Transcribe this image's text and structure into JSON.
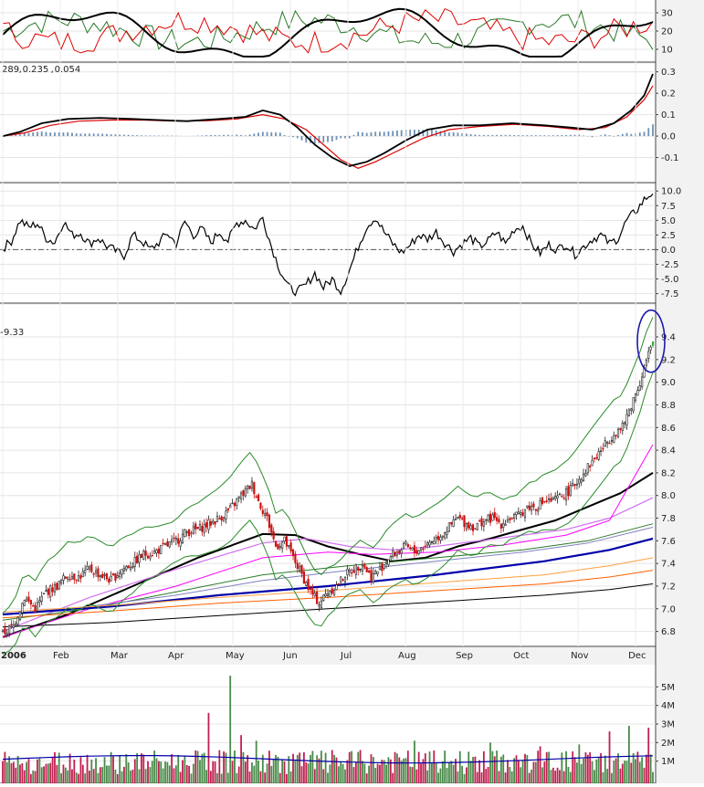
{
  "chart_data": [
    {
      "type": "line",
      "panel": "ADX / directional indicator",
      "ylim": [
        5,
        35
      ],
      "y_ticks": [
        "30",
        "20",
        "10"
      ],
      "series_colors": {
        "adx": "#000000",
        "plus_di": "#2a7a2a",
        "minus_di": "#dd0000"
      }
    },
    {
      "type": "line",
      "panel": "MACD",
      "legend_values": [
        "289",
        "0.235",
        "0.054"
      ],
      "legend_colors": [
        "#000000",
        "#dd0000",
        "#2a7a2a"
      ],
      "ylim": [
        -0.2,
        0.32
      ],
      "y_ticks": [
        "0.3",
        "0.2",
        "0.1",
        "0.0",
        "-0.1"
      ],
      "histogram_color": "#6e90b4",
      "macd_points": [
        [
          0,
          0.0
        ],
        [
          8,
          0.02
        ],
        [
          18,
          0.06
        ],
        [
          30,
          0.08
        ],
        [
          45,
          0.085
        ],
        [
          60,
          0.08
        ],
        [
          72,
          0.075
        ],
        [
          85,
          0.07
        ],
        [
          100,
          0.08
        ],
        [
          112,
          0.09
        ],
        [
          120,
          0.12
        ],
        [
          128,
          0.1
        ],
        [
          136,
          0.04
        ],
        [
          144,
          -0.04
        ],
        [
          152,
          -0.1
        ],
        [
          160,
          -0.14
        ],
        [
          168,
          -0.12
        ],
        [
          176,
          -0.08
        ],
        [
          186,
          -0.02
        ],
        [
          196,
          0.03
        ],
        [
          208,
          0.05
        ],
        [
          220,
          0.05
        ],
        [
          235,
          0.06
        ],
        [
          250,
          0.05
        ],
        [
          262,
          0.04
        ],
        [
          272,
          0.03
        ],
        [
          282,
          0.06
        ],
        [
          290,
          0.12
        ],
        [
          296,
          0.19
        ],
        [
          300,
          0.29
        ]
      ],
      "signal_points": [
        [
          0,
          0.0
        ],
        [
          10,
          0.015
        ],
        [
          22,
          0.05
        ],
        [
          35,
          0.07
        ],
        [
          50,
          0.075
        ],
        [
          65,
          0.075
        ],
        [
          80,
          0.07
        ],
        [
          95,
          0.072
        ],
        [
          108,
          0.08
        ],
        [
          120,
          0.1
        ],
        [
          130,
          0.08
        ],
        [
          140,
          0.03
        ],
        [
          148,
          -0.04
        ],
        [
          156,
          -0.11
        ],
        [
          164,
          -0.15
        ],
        [
          172,
          -0.12
        ],
        [
          182,
          -0.07
        ],
        [
          194,
          -0.01
        ],
        [
          206,
          0.03
        ],
        [
          220,
          0.045
        ],
        [
          236,
          0.055
        ],
        [
          252,
          0.045
        ],
        [
          266,
          0.03
        ],
        [
          278,
          0.04
        ],
        [
          288,
          0.09
        ],
        [
          296,
          0.17
        ],
        [
          300,
          0.235
        ]
      ]
    },
    {
      "type": "line",
      "panel": "oscillator",
      "ylim": [
        -8.5,
        10.5
      ],
      "y_ticks": [
        "10.0",
        "7.5",
        "5.0",
        "2.5",
        "0.0",
        "-2.5",
        "-5.0",
        "-7.5"
      ],
      "points": [
        [
          0,
          0.2
        ],
        [
          4,
          1.5
        ],
        [
          8,
          5.0
        ],
        [
          12,
          3.8
        ],
        [
          16,
          4.5
        ],
        [
          20,
          2.0
        ],
        [
          24,
          1.2
        ],
        [
          28,
          4.8
        ],
        [
          32,
          2.5
        ],
        [
          36,
          2.8
        ],
        [
          40,
          1.0
        ],
        [
          44,
          2.0
        ],
        [
          48,
          0.6
        ],
        [
          52,
          -0.2
        ],
        [
          56,
          -1.0
        ],
        [
          60,
          2.5
        ],
        [
          64,
          1.5
        ],
        [
          68,
          0.0
        ],
        [
          72,
          1.2
        ],
        [
          76,
          2.8
        ],
        [
          80,
          1.0
        ],
        [
          84,
          4.8
        ],
        [
          88,
          2.5
        ],
        [
          92,
          3.5
        ],
        [
          96,
          1.2
        ],
        [
          100,
          3.0
        ],
        [
          104,
          1.5
        ],
        [
          108,
          4.5
        ],
        [
          112,
          5.0
        ],
        [
          116,
          3.5
        ],
        [
          120,
          5.5
        ],
        [
          124,
          0.5
        ],
        [
          128,
          -3.5
        ],
        [
          132,
          -6.5
        ],
        [
          136,
          -7.2
        ],
        [
          140,
          -6.0
        ],
        [
          144,
          -4.0
        ],
        [
          148,
          -6.5
        ],
        [
          152,
          -5.0
        ],
        [
          156,
          -7.0
        ],
        [
          160,
          -3.5
        ],
        [
          164,
          0.5
        ],
        [
          168,
          4.0
        ],
        [
          172,
          5.5
        ],
        [
          176,
          3.0
        ],
        [
          180,
          1.0
        ],
        [
          184,
          -0.5
        ],
        [
          188,
          0.8
        ],
        [
          192,
          2.5
        ],
        [
          196,
          1.8
        ],
        [
          200,
          3.0
        ],
        [
          204,
          1.2
        ],
        [
          208,
          -0.3
        ],
        [
          212,
          1.0
        ],
        [
          216,
          2.0
        ],
        [
          220,
          0.5
        ],
        [
          224,
          1.5
        ],
        [
          228,
          3.0
        ],
        [
          232,
          1.0
        ],
        [
          236,
          3.5
        ],
        [
          240,
          4.0
        ],
        [
          244,
          1.0
        ],
        [
          248,
          -0.6
        ],
        [
          252,
          0.8
        ],
        [
          256,
          0.0
        ],
        [
          260,
          1.0
        ],
        [
          264,
          -0.8
        ],
        [
          268,
          0.5
        ],
        [
          272,
          1.8
        ],
        [
          276,
          2.5
        ],
        [
          280,
          1.0
        ],
        [
          284,
          2.0
        ],
        [
          288,
          5.0
        ],
        [
          292,
          6.5
        ],
        [
          296,
          8.5
        ],
        [
          300,
          9.8
        ]
      ],
      "zero_line": "dash-dot"
    },
    {
      "type": "candlestick",
      "panel": "price",
      "legend_value": "9.33",
      "legend_color": "#2a7a2a",
      "ylim": [
        6.7,
        9.65
      ],
      "y_ticks": [
        "9.4",
        "9.2",
        "9.0",
        "8.8",
        "8.6",
        "8.4",
        "8.2",
        "8.0",
        "7.8",
        "7.6",
        "7.4",
        "7.2",
        "7.0",
        "6.8"
      ],
      "x_labels": [
        "2006",
        "Feb",
        "Mar",
        "Apr",
        "May",
        "Jun",
        "Jul",
        "Aug",
        "Sep",
        "Oct",
        "Nov",
        "Dec"
      ],
      "close_path": [
        [
          0,
          6.78
        ],
        [
          5,
          6.85
        ],
        [
          10,
          7.1
        ],
        [
          15,
          7.0
        ],
        [
          20,
          7.15
        ],
        [
          25,
          7.2
        ],
        [
          30,
          7.3
        ],
        [
          35,
          7.28
        ],
        [
          40,
          7.35
        ],
        [
          45,
          7.3
        ],
        [
          50,
          7.25
        ],
        [
          55,
          7.35
        ],
        [
          60,
          7.4
        ],
        [
          65,
          7.48
        ],
        [
          70,
          7.5
        ],
        [
          75,
          7.55
        ],
        [
          80,
          7.6
        ],
        [
          85,
          7.68
        ],
        [
          90,
          7.7
        ],
        [
          95,
          7.75
        ],
        [
          100,
          7.8
        ],
        [
          105,
          7.88
        ],
        [
          110,
          8.0
        ],
        [
          115,
          8.1
        ],
        [
          118,
          7.95
        ],
        [
          122,
          7.8
        ],
        [
          126,
          7.55
        ],
        [
          130,
          7.6
        ],
        [
          134,
          7.45
        ],
        [
          138,
          7.3
        ],
        [
          142,
          7.15
        ],
        [
          146,
          7.05
        ],
        [
          150,
          7.15
        ],
        [
          154,
          7.2
        ],
        [
          158,
          7.3
        ],
        [
          162,
          7.35
        ],
        [
          166,
          7.4
        ],
        [
          170,
          7.28
        ],
        [
          174,
          7.35
        ],
        [
          178,
          7.45
        ],
        [
          182,
          7.5
        ],
        [
          186,
          7.55
        ],
        [
          190,
          7.5
        ],
        [
          194,
          7.55
        ],
        [
          198,
          7.6
        ],
        [
          202,
          7.65
        ],
        [
          206,
          7.72
        ],
        [
          210,
          7.8
        ],
        [
          214,
          7.75
        ],
        [
          218,
          7.72
        ],
        [
          222,
          7.78
        ],
        [
          226,
          7.8
        ],
        [
          230,
          7.75
        ],
        [
          234,
          7.8
        ],
        [
          238,
          7.82
        ],
        [
          242,
          7.9
        ],
        [
          246,
          7.9
        ],
        [
          250,
          7.95
        ],
        [
          254,
          7.95
        ],
        [
          258,
          8.0
        ],
        [
          262,
          8.05
        ],
        [
          266,
          8.15
        ],
        [
          270,
          8.25
        ],
        [
          274,
          8.35
        ],
        [
          278,
          8.45
        ],
        [
          282,
          8.55
        ],
        [
          286,
          8.6
        ],
        [
          290,
          8.8
        ],
        [
          294,
          9.0
        ],
        [
          298,
          9.25
        ],
        [
          300,
          9.33
        ]
      ],
      "moving_averages": [
        {
          "color": "#000000",
          "width": 2.0,
          "points": [
            [
              0,
              6.75
            ],
            [
              30,
              6.95
            ],
            [
              60,
              7.2
            ],
            [
              90,
              7.45
            ],
            [
              120,
              7.66
            ],
            [
              135,
              7.65
            ],
            [
              150,
              7.55
            ],
            [
              165,
              7.48
            ],
            [
              180,
              7.42
            ],
            [
              195,
              7.45
            ],
            [
              210,
              7.55
            ],
            [
              225,
              7.62
            ],
            [
              240,
              7.7
            ],
            [
              255,
              7.78
            ],
            [
              270,
              7.9
            ],
            [
              285,
              8.02
            ],
            [
              300,
              8.2
            ]
          ]
        },
        {
          "color": "#d070f0",
          "width": 1.2,
          "points": [
            [
              0,
              6.8
            ],
            [
              40,
              7.1
            ],
            [
              80,
              7.35
            ],
            [
              120,
              7.58
            ],
            [
              140,
              7.62
            ],
            [
              160,
              7.55
            ],
            [
              180,
              7.52
            ],
            [
              200,
              7.55
            ],
            [
              220,
              7.6
            ],
            [
              240,
              7.65
            ],
            [
              260,
              7.7
            ],
            [
              280,
              7.8
            ],
            [
              300,
              7.98
            ]
          ]
        },
        {
          "color": "#ff00ff",
          "width": 1.0,
          "points": [
            [
              0,
              6.75
            ],
            [
              40,
              7.0
            ],
            [
              80,
              7.2
            ],
            [
              120,
              7.45
            ],
            [
              150,
              7.5
            ],
            [
              170,
              7.48
            ],
            [
              200,
              7.5
            ],
            [
              230,
              7.56
            ],
            [
              260,
              7.65
            ],
            [
              280,
              7.78
            ],
            [
              300,
              8.45
            ]
          ]
        },
        {
          "color": "#2a7a2a",
          "width": 1.0,
          "points": [
            [
              0,
              6.9
            ],
            [
              40,
              7.0
            ],
            [
              80,
              7.15
            ],
            [
              120,
              7.3
            ],
            [
              160,
              7.38
            ],
            [
              200,
              7.45
            ],
            [
              240,
              7.52
            ],
            [
              270,
              7.6
            ],
            [
              300,
              7.75
            ]
          ]
        },
        {
          "color": "#8080c0",
          "width": 1.0,
          "points": [
            [
              0,
              6.95
            ],
            [
              40,
              7.02
            ],
            [
              80,
              7.12
            ],
            [
              120,
              7.25
            ],
            [
              160,
              7.34
            ],
            [
              200,
              7.42
            ],
            [
              240,
              7.5
            ],
            [
              270,
              7.58
            ],
            [
              300,
              7.72
            ]
          ]
        },
        {
          "color": "#0000aa",
          "width": 2.2,
          "points": [
            [
              0,
              6.95
            ],
            [
              50,
              7.02
            ],
            [
              100,
              7.12
            ],
            [
              150,
              7.2
            ],
            [
              200,
              7.3
            ],
            [
              250,
              7.42
            ],
            [
              280,
              7.52
            ],
            [
              300,
              7.62
            ]
          ]
        },
        {
          "color": "#ffa040",
          "width": 1.0,
          "points": [
            [
              0,
              6.97
            ],
            [
              50,
              7.03
            ],
            [
              100,
              7.1
            ],
            [
              150,
              7.16
            ],
            [
              200,
              7.23
            ],
            [
              250,
              7.3
            ],
            [
              280,
              7.38
            ],
            [
              300,
              7.45
            ]
          ]
        },
        {
          "color": "#ff6000",
          "width": 1.0,
          "points": [
            [
              0,
              6.92
            ],
            [
              50,
              6.98
            ],
            [
              100,
              7.05
            ],
            [
              150,
              7.1
            ],
            [
              200,
              7.16
            ],
            [
              250,
              7.22
            ],
            [
              280,
              7.28
            ],
            [
              300,
              7.34
            ]
          ]
        },
        {
          "color": "#000000",
          "width": 1.0,
          "points": [
            [
              0,
              6.84
            ],
            [
              50,
              6.88
            ],
            [
              100,
              6.94
            ],
            [
              150,
              7.0
            ],
            [
              200,
              7.06
            ],
            [
              250,
              7.12
            ],
            [
              280,
              7.17
            ],
            [
              300,
              7.22
            ]
          ]
        }
      ],
      "bollinger_color": "#2a8a2a",
      "annotation": {
        "shape": "ellipse",
        "color": "#1a1aaa",
        "around": "last-bar"
      }
    },
    {
      "type": "bar",
      "panel": "volume",
      "ylim": [
        0,
        6000000
      ],
      "y_ticks": [
        "5M",
        "4M",
        "3M",
        "2M",
        "1M"
      ],
      "up_color": "#4a8a4a",
      "down_color": "#c02050",
      "average_color": "#0000aa",
      "average_level": 1100000
    }
  ]
}
